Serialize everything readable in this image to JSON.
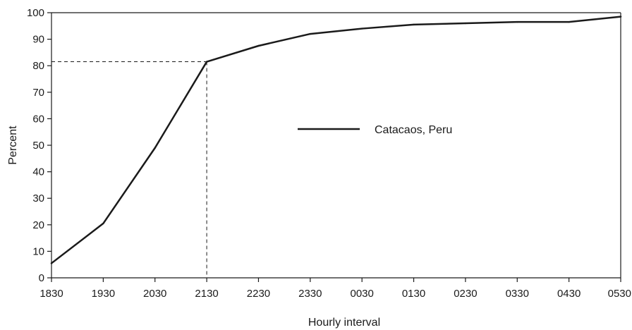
{
  "chart_data": {
    "type": "line",
    "title": "",
    "xlabel": "Hourly interval",
    "ylabel": "Percent",
    "categories": [
      "1830",
      "1930",
      "2030",
      "2130",
      "2230",
      "2330",
      "0030",
      "0130",
      "0230",
      "0330",
      "0430",
      "0530"
    ],
    "x_ticks": [
      "1830",
      "1930",
      "2030",
      "2130",
      "2230",
      "2330",
      "0030",
      "0130",
      "0230",
      "0330",
      "0430",
      "0530"
    ],
    "y_ticks": [
      "0",
      "10",
      "20",
      "30",
      "40",
      "50",
      "60",
      "70",
      "80",
      "90",
      "100"
    ],
    "ylim": [
      0,
      100
    ],
    "grid": false,
    "legend_position": "center-right",
    "series": [
      {
        "name": "Catacaos, Peru",
        "color": "#1a1a1a",
        "values": [
          5.5,
          20.5,
          49,
          81.5,
          87.5,
          92,
          94,
          95.5,
          96,
          96.5,
          96.5,
          98.5
        ]
      }
    ],
    "reference": {
      "x": "2130",
      "y": 81.5,
      "style": "dashed"
    }
  }
}
